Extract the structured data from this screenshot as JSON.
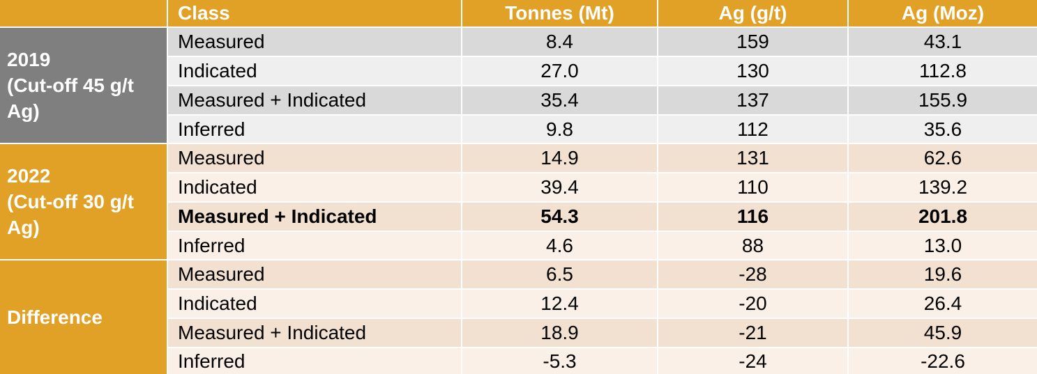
{
  "header": {
    "class": "Class",
    "tonnes": "Tonnes (Mt)",
    "grade": "Ag (g/t)",
    "ounces": "Ag (Moz)"
  },
  "groups": [
    {
      "label": "2019\n(Cut-off 45 g/t\nAg)",
      "rows": [
        {
          "class": "Measured",
          "tonnes": "8.4",
          "grade": "159",
          "ounces": "43.1"
        },
        {
          "class": "Indicated",
          "tonnes": "27.0",
          "grade": "130",
          "ounces": "112.8"
        },
        {
          "class": "Measured + Indicated",
          "tonnes": "35.4",
          "grade": "137",
          "ounces": "155.9"
        },
        {
          "class": "Inferred",
          "tonnes": "9.8",
          "grade": "112",
          "ounces": "35.6"
        }
      ]
    },
    {
      "label": "2022\n(Cut-off 30 g/t\nAg)",
      "rows": [
        {
          "class": "Measured",
          "tonnes": "14.9",
          "grade": "131",
          "ounces": "62.6"
        },
        {
          "class": "Indicated",
          "tonnes": "39.4",
          "grade": "110",
          "ounces": "139.2"
        },
        {
          "class": "Measured + Indicated",
          "tonnes": "54.3",
          "grade": "116",
          "ounces": "201.8",
          "bold": true
        },
        {
          "class": "Inferred",
          "tonnes": "4.6",
          "grade": "88",
          "ounces": "13.0"
        }
      ]
    },
    {
      "label": "Difference",
      "rows": [
        {
          "class": "Measured",
          "tonnes": "6.5",
          "grade": "-28",
          "ounces": "19.6"
        },
        {
          "class": "Indicated",
          "tonnes": "12.4",
          "grade": "-20",
          "ounces": "26.4"
        },
        {
          "class": "Measured + Indicated",
          "tonnes": "18.9",
          "grade": "-21",
          "ounces": "45.9"
        },
        {
          "class": "Inferred",
          "tonnes": "-5.3",
          "grade": "-24",
          "ounces": "-22.6"
        }
      ]
    }
  ],
  "colors": {
    "header_orange": "#E0A126",
    "group_2019_grey": "#7F7F7F",
    "row_2019_dark": "#D9D9D9",
    "row_2019_light": "#EFEFEF",
    "row_peach_dark": "#F2E0D0",
    "row_peach_light": "#FAF0E7"
  }
}
